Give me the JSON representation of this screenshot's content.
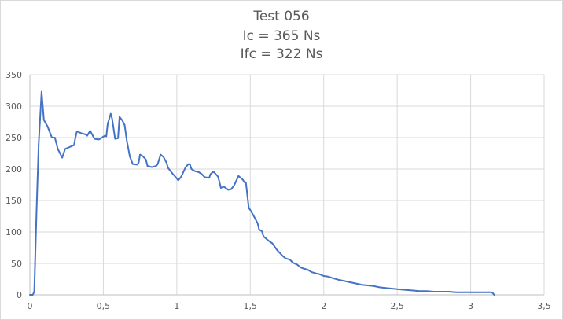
{
  "chart_data": {
    "type": "line",
    "title": "Test 056",
    "subtitle_lines": [
      "Ic = 365 Ns",
      "Ifc = 322 Ns"
    ],
    "xlabel": "",
    "ylabel": "",
    "xlim": [
      0,
      3.5
    ],
    "ylim": [
      0,
      350
    ],
    "x_ticks": [
      "0",
      "0,5",
      "1",
      "1,5",
      "2",
      "2,5",
      "3",
      "3,5"
    ],
    "y_ticks": [
      "0",
      "50",
      "100",
      "150",
      "200",
      "250",
      "300",
      "350"
    ],
    "grid": true,
    "legend": "none",
    "line_color": "#4472c4",
    "series": [
      {
        "points": [
          [
            0.0,
            0
          ],
          [
            0.02,
            0
          ],
          [
            0.03,
            5
          ],
          [
            0.045,
            130
          ],
          [
            0.06,
            240
          ],
          [
            0.08,
            323
          ],
          [
            0.095,
            278
          ],
          [
            0.12,
            268
          ],
          [
            0.15,
            250
          ],
          [
            0.17,
            250
          ],
          [
            0.19,
            232
          ],
          [
            0.22,
            218
          ],
          [
            0.24,
            232
          ],
          [
            0.27,
            235
          ],
          [
            0.3,
            238
          ],
          [
            0.31,
            250
          ],
          [
            0.32,
            260
          ],
          [
            0.35,
            257
          ],
          [
            0.38,
            255
          ],
          [
            0.39,
            253
          ],
          [
            0.41,
            261
          ],
          [
            0.44,
            248
          ],
          [
            0.47,
            247
          ],
          [
            0.49,
            250
          ],
          [
            0.51,
            253
          ],
          [
            0.52,
            252
          ],
          [
            0.53,
            272
          ],
          [
            0.55,
            288
          ],
          [
            0.56,
            280
          ],
          [
            0.58,
            248
          ],
          [
            0.6,
            249
          ],
          [
            0.61,
            283
          ],
          [
            0.63,
            277
          ],
          [
            0.645,
            270
          ],
          [
            0.66,
            245
          ],
          [
            0.68,
            220
          ],
          [
            0.7,
            208
          ],
          [
            0.73,
            207
          ],
          [
            0.74,
            210
          ],
          [
            0.75,
            223
          ],
          [
            0.77,
            220
          ],
          [
            0.79,
            215
          ],
          [
            0.8,
            205
          ],
          [
            0.83,
            203
          ],
          [
            0.86,
            205
          ],
          [
            0.87,
            208
          ],
          [
            0.89,
            223
          ],
          [
            0.91,
            219
          ],
          [
            0.93,
            210
          ],
          [
            0.94,
            202
          ],
          [
            0.97,
            193
          ],
          [
            1.0,
            185
          ],
          [
            1.01,
            182
          ],
          [
            1.03,
            188
          ],
          [
            1.06,
            203
          ],
          [
            1.08,
            208
          ],
          [
            1.09,
            207
          ],
          [
            1.1,
            200
          ],
          [
            1.12,
            197
          ],
          [
            1.15,
            195
          ],
          [
            1.17,
            192
          ],
          [
            1.19,
            187
          ],
          [
            1.22,
            186
          ],
          [
            1.23,
            192
          ],
          [
            1.25,
            196
          ],
          [
            1.28,
            188
          ],
          [
            1.29,
            180
          ],
          [
            1.3,
            170
          ],
          [
            1.32,
            172
          ],
          [
            1.35,
            167
          ],
          [
            1.37,
            168
          ],
          [
            1.39,
            174
          ],
          [
            1.42,
            189
          ],
          [
            1.45,
            183
          ],
          [
            1.46,
            179
          ],
          [
            1.47,
            179
          ],
          [
            1.49,
            138
          ],
          [
            1.5,
            135
          ],
          [
            1.52,
            127
          ],
          [
            1.55,
            114
          ],
          [
            1.56,
            104
          ],
          [
            1.58,
            101
          ],
          [
            1.59,
            93
          ],
          [
            1.62,
            87
          ],
          [
            1.63,
            85
          ],
          [
            1.65,
            82
          ],
          [
            1.68,
            72
          ],
          [
            1.7,
            67
          ],
          [
            1.72,
            62
          ],
          [
            1.74,
            58
          ],
          [
            1.77,
            56
          ],
          [
            1.79,
            51
          ],
          [
            1.82,
            48
          ],
          [
            1.84,
            44
          ],
          [
            1.86,
            42
          ],
          [
            1.89,
            40
          ],
          [
            1.92,
            36
          ],
          [
            1.95,
            34
          ],
          [
            1.97,
            33
          ],
          [
            2.0,
            30
          ],
          [
            2.03,
            29
          ],
          [
            2.07,
            26
          ],
          [
            2.1,
            24
          ],
          [
            2.14,
            22
          ],
          [
            2.18,
            20
          ],
          [
            2.22,
            18
          ],
          [
            2.26,
            16
          ],
          [
            2.3,
            15
          ],
          [
            2.34,
            14
          ],
          [
            2.38,
            12
          ],
          [
            2.42,
            11
          ],
          [
            2.46,
            10
          ],
          [
            2.5,
            9
          ],
          [
            2.55,
            8
          ],
          [
            2.6,
            7
          ],
          [
            2.65,
            6
          ],
          [
            2.7,
            6
          ],
          [
            2.75,
            5
          ],
          [
            2.8,
            5
          ],
          [
            2.85,
            5
          ],
          [
            2.9,
            4
          ],
          [
            2.95,
            4
          ],
          [
            3.0,
            4
          ],
          [
            3.05,
            4
          ],
          [
            3.1,
            4
          ],
          [
            3.14,
            4
          ],
          [
            3.15,
            3
          ],
          [
            3.16,
            0
          ]
        ]
      }
    ]
  }
}
